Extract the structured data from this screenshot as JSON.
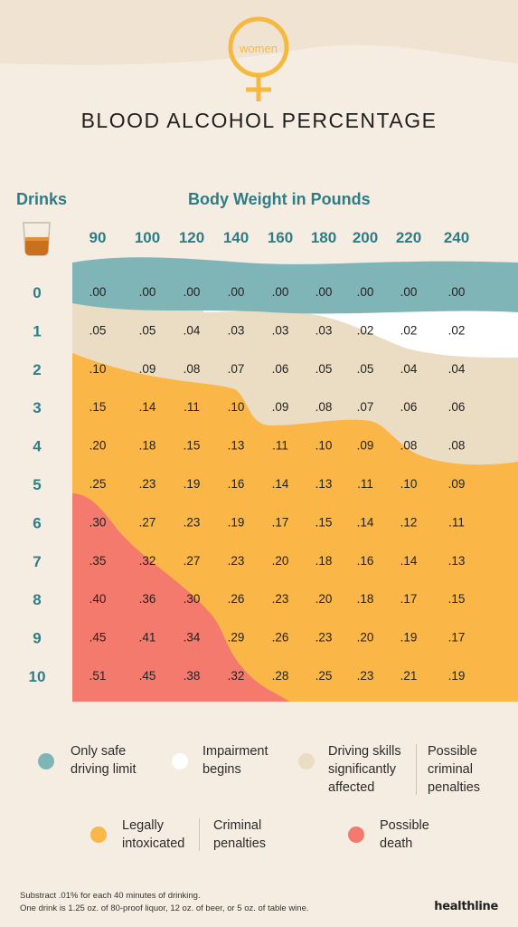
{
  "header": {
    "symbol_label": "women",
    "title": "BLOOD ALCOHOL PERCENTAGE"
  },
  "chart_data": {
    "type": "table",
    "title": "BLOOD ALCOHOL PERCENTAGE",
    "row_header": "Drinks",
    "column_header": "Body Weight in Pounds",
    "weights": [
      "90",
      "100",
      "120",
      "140",
      "160",
      "180",
      "200",
      "220",
      "240"
    ],
    "drinks": [
      "0",
      "1",
      "2",
      "3",
      "4",
      "5",
      "6",
      "7",
      "8",
      "9",
      "10"
    ],
    "values": [
      [
        ".00",
        ".00",
        ".00",
        ".00",
        ".00",
        ".00",
        ".00",
        ".00",
        ".00"
      ],
      [
        ".05",
        ".05",
        ".04",
        ".03",
        ".03",
        ".03",
        ".02",
        ".02",
        ".02"
      ],
      [
        ".10",
        ".09",
        ".08",
        ".07",
        ".06",
        ".05",
        ".05",
        ".04",
        ".04"
      ],
      [
        ".15",
        ".14",
        ".11",
        ".10",
        ".09",
        ".08",
        ".07",
        ".06",
        ".06"
      ],
      [
        ".20",
        ".18",
        ".15",
        ".13",
        ".11",
        ".10",
        ".09",
        ".08",
        ".08"
      ],
      [
        ".25",
        ".23",
        ".19",
        ".16",
        ".14",
        ".13",
        ".11",
        ".10",
        ".09"
      ],
      [
        ".30",
        ".27",
        ".23",
        ".19",
        ".17",
        ".15",
        ".14",
        ".12",
        ".11"
      ],
      [
        ".35",
        ".32",
        ".27",
        ".23",
        ".20",
        ".18",
        ".16",
        ".14",
        ".13"
      ],
      [
        ".40",
        ".36",
        ".30",
        ".26",
        ".23",
        ".20",
        ".18",
        ".17",
        ".15"
      ],
      [
        ".45",
        ".41",
        ".34",
        ".29",
        ".26",
        ".23",
        ".20",
        ".19",
        ".17"
      ],
      [
        ".51",
        ".45",
        ".38",
        ".32",
        ".28",
        ".25",
        ".23",
        ".21",
        ".19"
      ]
    ],
    "zones": {
      "safe": "#80b5b8",
      "impairment": "#ffffff",
      "driving_affected": "#ebdcc4",
      "intoxicated": "#fab747",
      "death": "#f47a6d"
    }
  },
  "legend": {
    "safe": "Only safe\ndriving limit",
    "impairment": "Impairment\nbegins",
    "driving": "Driving skills\nsignificantly\naffected",
    "possible_criminal": "Possible\ncriminal\npenalties",
    "intoxicated": "Legally\nintoxicated",
    "criminal": "Criminal\npenalties",
    "death": "Possible\ndeath"
  },
  "footer": {
    "note1": "Substract .01% for each 40 minutes of drinking.",
    "note2": "One drink is 1.25 oz. of 80-proof liquor, 12 oz. of beer, or 5 oz. of table wine.",
    "brand": "healthline"
  }
}
